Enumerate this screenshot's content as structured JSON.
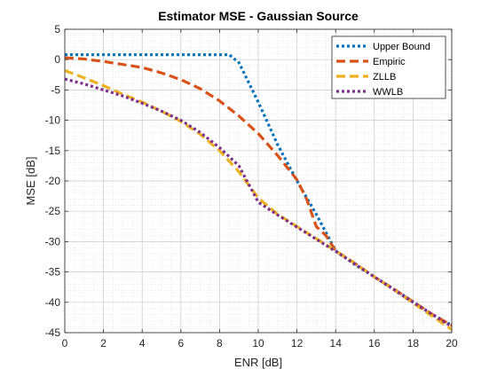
{
  "chart_data": {
    "type": "line",
    "title": "Estimator MSE - Gaussian Source",
    "xlabel": "ENR [dB]",
    "ylabel": "MSE [dB]",
    "xlim": [
      0,
      20
    ],
    "ylim": [
      -45,
      5
    ],
    "xticks": [
      0,
      2,
      4,
      6,
      8,
      10,
      12,
      14,
      16,
      18,
      20
    ],
    "yticks": [
      5,
      0,
      -5,
      -10,
      -15,
      -20,
      -25,
      -30,
      -35,
      -40,
      -45
    ],
    "grid": true,
    "minor_grid": true,
    "legend_position": "top-right",
    "series": [
      {
        "name": "Upper Bound",
        "color": "#0072BD",
        "style": "dotted",
        "x": [
          0,
          8.5,
          9,
          10,
          11,
          12,
          13,
          14,
          15,
          16,
          17,
          18,
          19,
          20
        ],
        "y": [
          0.8,
          0.8,
          -0.5,
          -7,
          -14,
          -20,
          -25.5,
          -31.5,
          -33.8,
          -35.8,
          -37.8,
          -39.9,
          -42,
          -43.8
        ]
      },
      {
        "name": "Empiric",
        "color": "#D95319",
        "style": "dashed",
        "x": [
          0,
          1,
          2,
          3,
          4,
          5,
          6,
          7,
          8,
          9,
          10,
          11,
          12,
          12.5,
          13,
          13.5,
          14,
          15,
          16,
          17,
          18,
          19,
          20
        ],
        "y": [
          0.3,
          0.1,
          -0.3,
          -0.8,
          -1.3,
          -2.2,
          -3.3,
          -4.8,
          -6.8,
          -9.3,
          -12.2,
          -15.8,
          -19.8,
          -23,
          -27.5,
          -29,
          -31.5,
          -33.6,
          -35.8,
          -37.8,
          -39.9,
          -42,
          -43.8
        ],
        "peak_label": "Empiric"
      },
      {
        "name": "ZLLB",
        "color": "#EDB120",
        "style": "dashed",
        "x": [
          0,
          1,
          2,
          3,
          4,
          5,
          6,
          7,
          8,
          9,
          10,
          11,
          12,
          13,
          14,
          15,
          16,
          17,
          18,
          19,
          20
        ],
        "y": [
          -1.8,
          -3,
          -4.3,
          -5.7,
          -7,
          -8.5,
          -10.2,
          -12.3,
          -15,
          -18.5,
          -22.8,
          -25.5,
          -27.5,
          -29.5,
          -31.5,
          -33.6,
          -35.8,
          -37.9,
          -40.1,
          -42.3,
          -44.5
        ]
      },
      {
        "name": "WWLB",
        "color": "#7E2F8E",
        "style": "dotted",
        "x": [
          0,
          1,
          2,
          3,
          4,
          5,
          6,
          7,
          8,
          9,
          10,
          11,
          12,
          13,
          14,
          15,
          16,
          17,
          18,
          19,
          20
        ],
        "y": [
          -3.2,
          -4,
          -5,
          -6,
          -7.2,
          -8.5,
          -10,
          -12,
          -14.5,
          -17.5,
          -23.5,
          -25.6,
          -27.6,
          -29.6,
          -31.6,
          -33.7,
          -35.8,
          -37.9,
          -40,
          -42,
          -44
        ]
      }
    ]
  }
}
